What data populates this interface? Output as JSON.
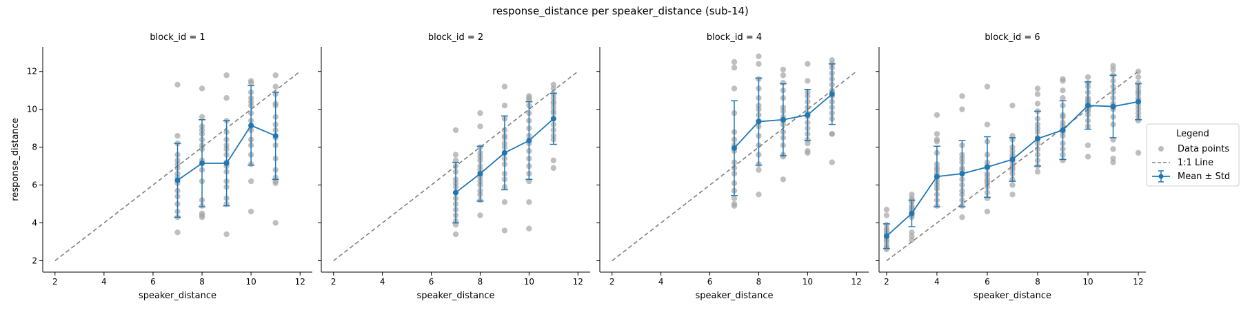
{
  "figure": {
    "title": "response_distance per speaker_distance (sub-14)"
  },
  "legend": {
    "title": "Legend",
    "entries": [
      "Data points",
      "1:1 Line",
      "Mean ± Std"
    ]
  },
  "chart_data": [
    {
      "type": "scatter",
      "title": "block_id = 1",
      "xlabel": "speaker_distance",
      "ylabel": "response_distance",
      "xlim": [
        1.5,
        12.5
      ],
      "ylim": [
        1.4,
        13.3
      ],
      "xticks": [
        2,
        4,
        6,
        8,
        10,
        12
      ],
      "yticks": [
        2,
        4,
        6,
        8,
        10,
        12
      ],
      "points": {
        "7": [
          11.3,
          8.6,
          8.2,
          7.6,
          7.1,
          6.9,
          6.4,
          6.1,
          5.7,
          5.4,
          5.0,
          4.6,
          4.3,
          3.5,
          6.6,
          7.3
        ],
        "8": [
          11.1,
          9.6,
          9.1,
          8.9,
          8.7,
          8.4,
          7.9,
          7.3,
          6.8,
          6.2,
          5.2,
          4.9,
          4.5,
          4.4,
          4.3,
          8.1
        ],
        "9": [
          11.8,
          10.6,
          9.4,
          8.8,
          8.4,
          7.9,
          7.6,
          7.2,
          6.7,
          6.2,
          5.9,
          5.3,
          5.0,
          3.4,
          7.0,
          8.1
        ],
        "10": [
          11.5,
          11.4,
          10.9,
          10.6,
          10.2,
          9.8,
          9.4,
          8.9,
          8.4,
          8.1,
          7.6,
          7.1,
          6.2,
          4.6,
          10.4,
          9.1
        ],
        "11": [
          11.8,
          11.2,
          10.8,
          10.3,
          10.2,
          9.6,
          8.9,
          8.1,
          7.4,
          6.8,
          6.4,
          6.2,
          6.1,
          4.0,
          9.2,
          8.5
        ]
      },
      "series": [
        {
          "name": "Mean ± Std",
          "x": [
            7,
            8,
            9,
            10,
            11
          ],
          "y": [
            6.25,
            7.15,
            7.15,
            9.15,
            8.6
          ],
          "std": [
            1.95,
            2.3,
            2.25,
            2.1,
            2.3
          ]
        }
      ],
      "identity_line": [
        2,
        12
      ]
    },
    {
      "type": "scatter",
      "title": "block_id = 2",
      "xlabel": "speaker_distance",
      "ylabel": "",
      "xlim": [
        1.5,
        12.5
      ],
      "ylim": [
        1.4,
        13.3
      ],
      "xticks": [
        2,
        4,
        6,
        8,
        10,
        12
      ],
      "yticks": [
        2,
        4,
        6,
        8,
        10,
        12
      ],
      "points": {
        "7": [
          8.9,
          7.6,
          7.3,
          7.0,
          6.7,
          6.3,
          5.9,
          5.6,
          5.3,
          5.0,
          4.7,
          4.4,
          4.1,
          3.9,
          3.4,
          6.1
        ],
        "8": [
          9.8,
          9.1,
          8.0,
          7.7,
          7.3,
          7.0,
          6.8,
          6.6,
          6.2,
          6.0,
          5.7,
          5.5,
          5.2,
          4.4,
          7.5,
          6.4
        ],
        "9": [
          11.2,
          10.2,
          9.5,
          8.9,
          8.5,
          8.2,
          8.0,
          7.7,
          7.4,
          7.1,
          6.6,
          6.3,
          5.9,
          5.1,
          3.6,
          8.6
        ],
        "10": [
          10.7,
          10.6,
          10.5,
          10.2,
          9.8,
          9.4,
          9.0,
          8.6,
          8.2,
          7.8,
          7.4,
          7.0,
          6.6,
          6.2,
          5.1,
          3.7
        ],
        "11": [
          11.3,
          11.1,
          10.8,
          10.6,
          10.3,
          10.1,
          9.8,
          9.5,
          9.2,
          8.9,
          8.6,
          8.4,
          7.3,
          6.9,
          9.9,
          10.4
        ]
      },
      "series": [
        {
          "name": "Mean ± Std",
          "x": [
            7,
            8,
            9,
            10,
            11
          ],
          "y": [
            5.6,
            6.6,
            7.7,
            8.35,
            9.5
          ],
          "std": [
            1.6,
            1.45,
            1.95,
            2.05,
            1.35
          ]
        }
      ],
      "identity_line": [
        2,
        12
      ]
    },
    {
      "type": "scatter",
      "title": "block_id = 4",
      "xlabel": "speaker_distance",
      "ylabel": "",
      "xlim": [
        1.5,
        12.5
      ],
      "ylim": [
        1.4,
        13.3
      ],
      "xticks": [
        2,
        4,
        6,
        8,
        10,
        12
      ],
      "yticks": [
        2,
        4,
        6,
        8,
        10,
        12
      ],
      "points": {
        "7": [
          12.5,
          12.2,
          11.1,
          9.8,
          8.8,
          8.4,
          7.8,
          7.2,
          6.6,
          6.1,
          5.7,
          5.3,
          5.0,
          4.9,
          8.1,
          6.9
        ],
        "8": [
          12.8,
          12.4,
          11.6,
          11.1,
          10.6,
          10.2,
          9.7,
          9.1,
          8.6,
          8.1,
          7.6,
          7.1,
          6.8,
          5.5,
          9.4,
          10.0
        ],
        "9": [
          12.1,
          11.8,
          11.4,
          11.0,
          10.6,
          10.1,
          9.6,
          9.2,
          8.8,
          8.5,
          8.1,
          7.6,
          7.5,
          6.3,
          9.9,
          9.4
        ],
        "10": [
          12.4,
          11.5,
          10.9,
          10.4,
          10.1,
          9.8,
          9.6,
          9.3,
          9.0,
          8.7,
          8.4,
          8.2,
          7.8,
          7.7,
          10.7,
          9.7
        ],
        "11": [
          12.6,
          12.4,
          12.2,
          11.9,
          11.6,
          11.3,
          11.0,
          10.7,
          10.4,
          10.1,
          9.8,
          9.5,
          8.7,
          8.7,
          7.2,
          10.9
        ]
      },
      "series": [
        {
          "name": "Mean ± Std",
          "x": [
            7,
            8,
            9,
            10,
            11
          ],
          "y": [
            7.95,
            9.35,
            9.45,
            9.7,
            10.8
          ],
          "std": [
            2.5,
            2.3,
            1.9,
            1.35,
            1.6
          ]
        }
      ],
      "identity_line": [
        2,
        12
      ]
    },
    {
      "type": "scatter",
      "title": "block_id = 6",
      "xlabel": "speaker_distance",
      "ylabel": "",
      "xlim": [
        1.7,
        12.3
      ],
      "ylim": [
        1.4,
        13.3
      ],
      "xticks": [
        2,
        4,
        6,
        8,
        10,
        12
      ],
      "yticks": [
        2,
        4,
        6,
        8,
        10,
        12
      ],
      "points": {
        "2": [
          4.7,
          4.4,
          3.9,
          3.7,
          3.5,
          3.4,
          3.2,
          3.0,
          2.8,
          2.7,
          2.6,
          3.6,
          3.3,
          3.1
        ],
        "3": [
          5.5,
          5.3,
          5.1,
          4.9,
          4.7,
          4.5,
          4.3,
          3.5,
          3.3,
          3.1,
          4.6,
          4.4,
          5.2,
          4.8
        ],
        "4": [
          9.7,
          8.7,
          8.4,
          8.3,
          7.1,
          6.8,
          6.6,
          6.4,
          6.2,
          6.0,
          5.8,
          5.5,
          5.2,
          4.9,
          7.7,
          6.9
        ],
        "5": [
          10.7,
          10.0,
          8.1,
          7.6,
          7.2,
          6.9,
          6.6,
          6.3,
          6.0,
          5.7,
          5.5,
          5.2,
          4.9,
          4.3,
          6.8,
          7.4
        ],
        "6": [
          11.2,
          9.2,
          8.3,
          7.6,
          7.2,
          6.9,
          6.6,
          6.3,
          6.1,
          5.9,
          5.6,
          5.3,
          4.6,
          6.5,
          6.2,
          7.0
        ],
        "7": [
          10.2,
          8.6,
          8.4,
          8.0,
          7.8,
          7.5,
          7.2,
          7.0,
          6.8,
          6.6,
          6.3,
          6.0,
          5.5,
          7.3,
          7.6,
          6.9
        ],
        "8": [
          11.1,
          10.8,
          10.3,
          9.9,
          9.5,
          9.2,
          8.8,
          8.5,
          8.2,
          7.9,
          7.6,
          7.3,
          7.0,
          6.7,
          8.4,
          9.0
        ],
        "9": [
          11.6,
          11.5,
          11.0,
          10.6,
          10.2,
          9.7,
          9.3,
          8.9,
          8.6,
          8.2,
          7.9,
          7.6,
          7.3,
          8.8,
          9.1,
          9.6
        ],
        "10": [
          11.7,
          11.4,
          11.2,
          10.9,
          10.6,
          10.3,
          10.0,
          9.7,
          9.4,
          9.1,
          8.1,
          7.5,
          10.4,
          10.1,
          9.9,
          10.5
        ],
        "11": [
          12.3,
          12.1,
          11.8,
          11.5,
          11.2,
          10.9,
          10.6,
          10.3,
          10.0,
          9.6,
          9.2,
          8.4,
          7.9,
          7.4,
          7.2,
          10.1
        ],
        "12": [
          12.0,
          11.7,
          11.4,
          11.2,
          11.0,
          10.8,
          10.6,
          10.4,
          10.2,
          10.0,
          9.8,
          9.6,
          9.4,
          7.7,
          10.5,
          10.9
        ]
      },
      "series": [
        {
          "name": "Mean ± Std",
          "x": [
            2,
            3,
            4,
            5,
            6,
            7,
            8,
            9,
            10,
            11,
            12
          ],
          "y": [
            3.3,
            4.5,
            6.45,
            6.6,
            6.95,
            7.35,
            8.45,
            8.9,
            10.2,
            10.15,
            10.4
          ],
          "std": [
            0.65,
            0.7,
            1.6,
            1.75,
            1.6,
            1.15,
            1.45,
            1.55,
            1.25,
            1.65,
            0.95
          ]
        }
      ],
      "identity_line": [
        2,
        12
      ]
    }
  ],
  "colors": {
    "points": "#a6a6a6",
    "mean": "#1f77b4",
    "identity": "#7f7f7f",
    "axes": "#000000"
  }
}
